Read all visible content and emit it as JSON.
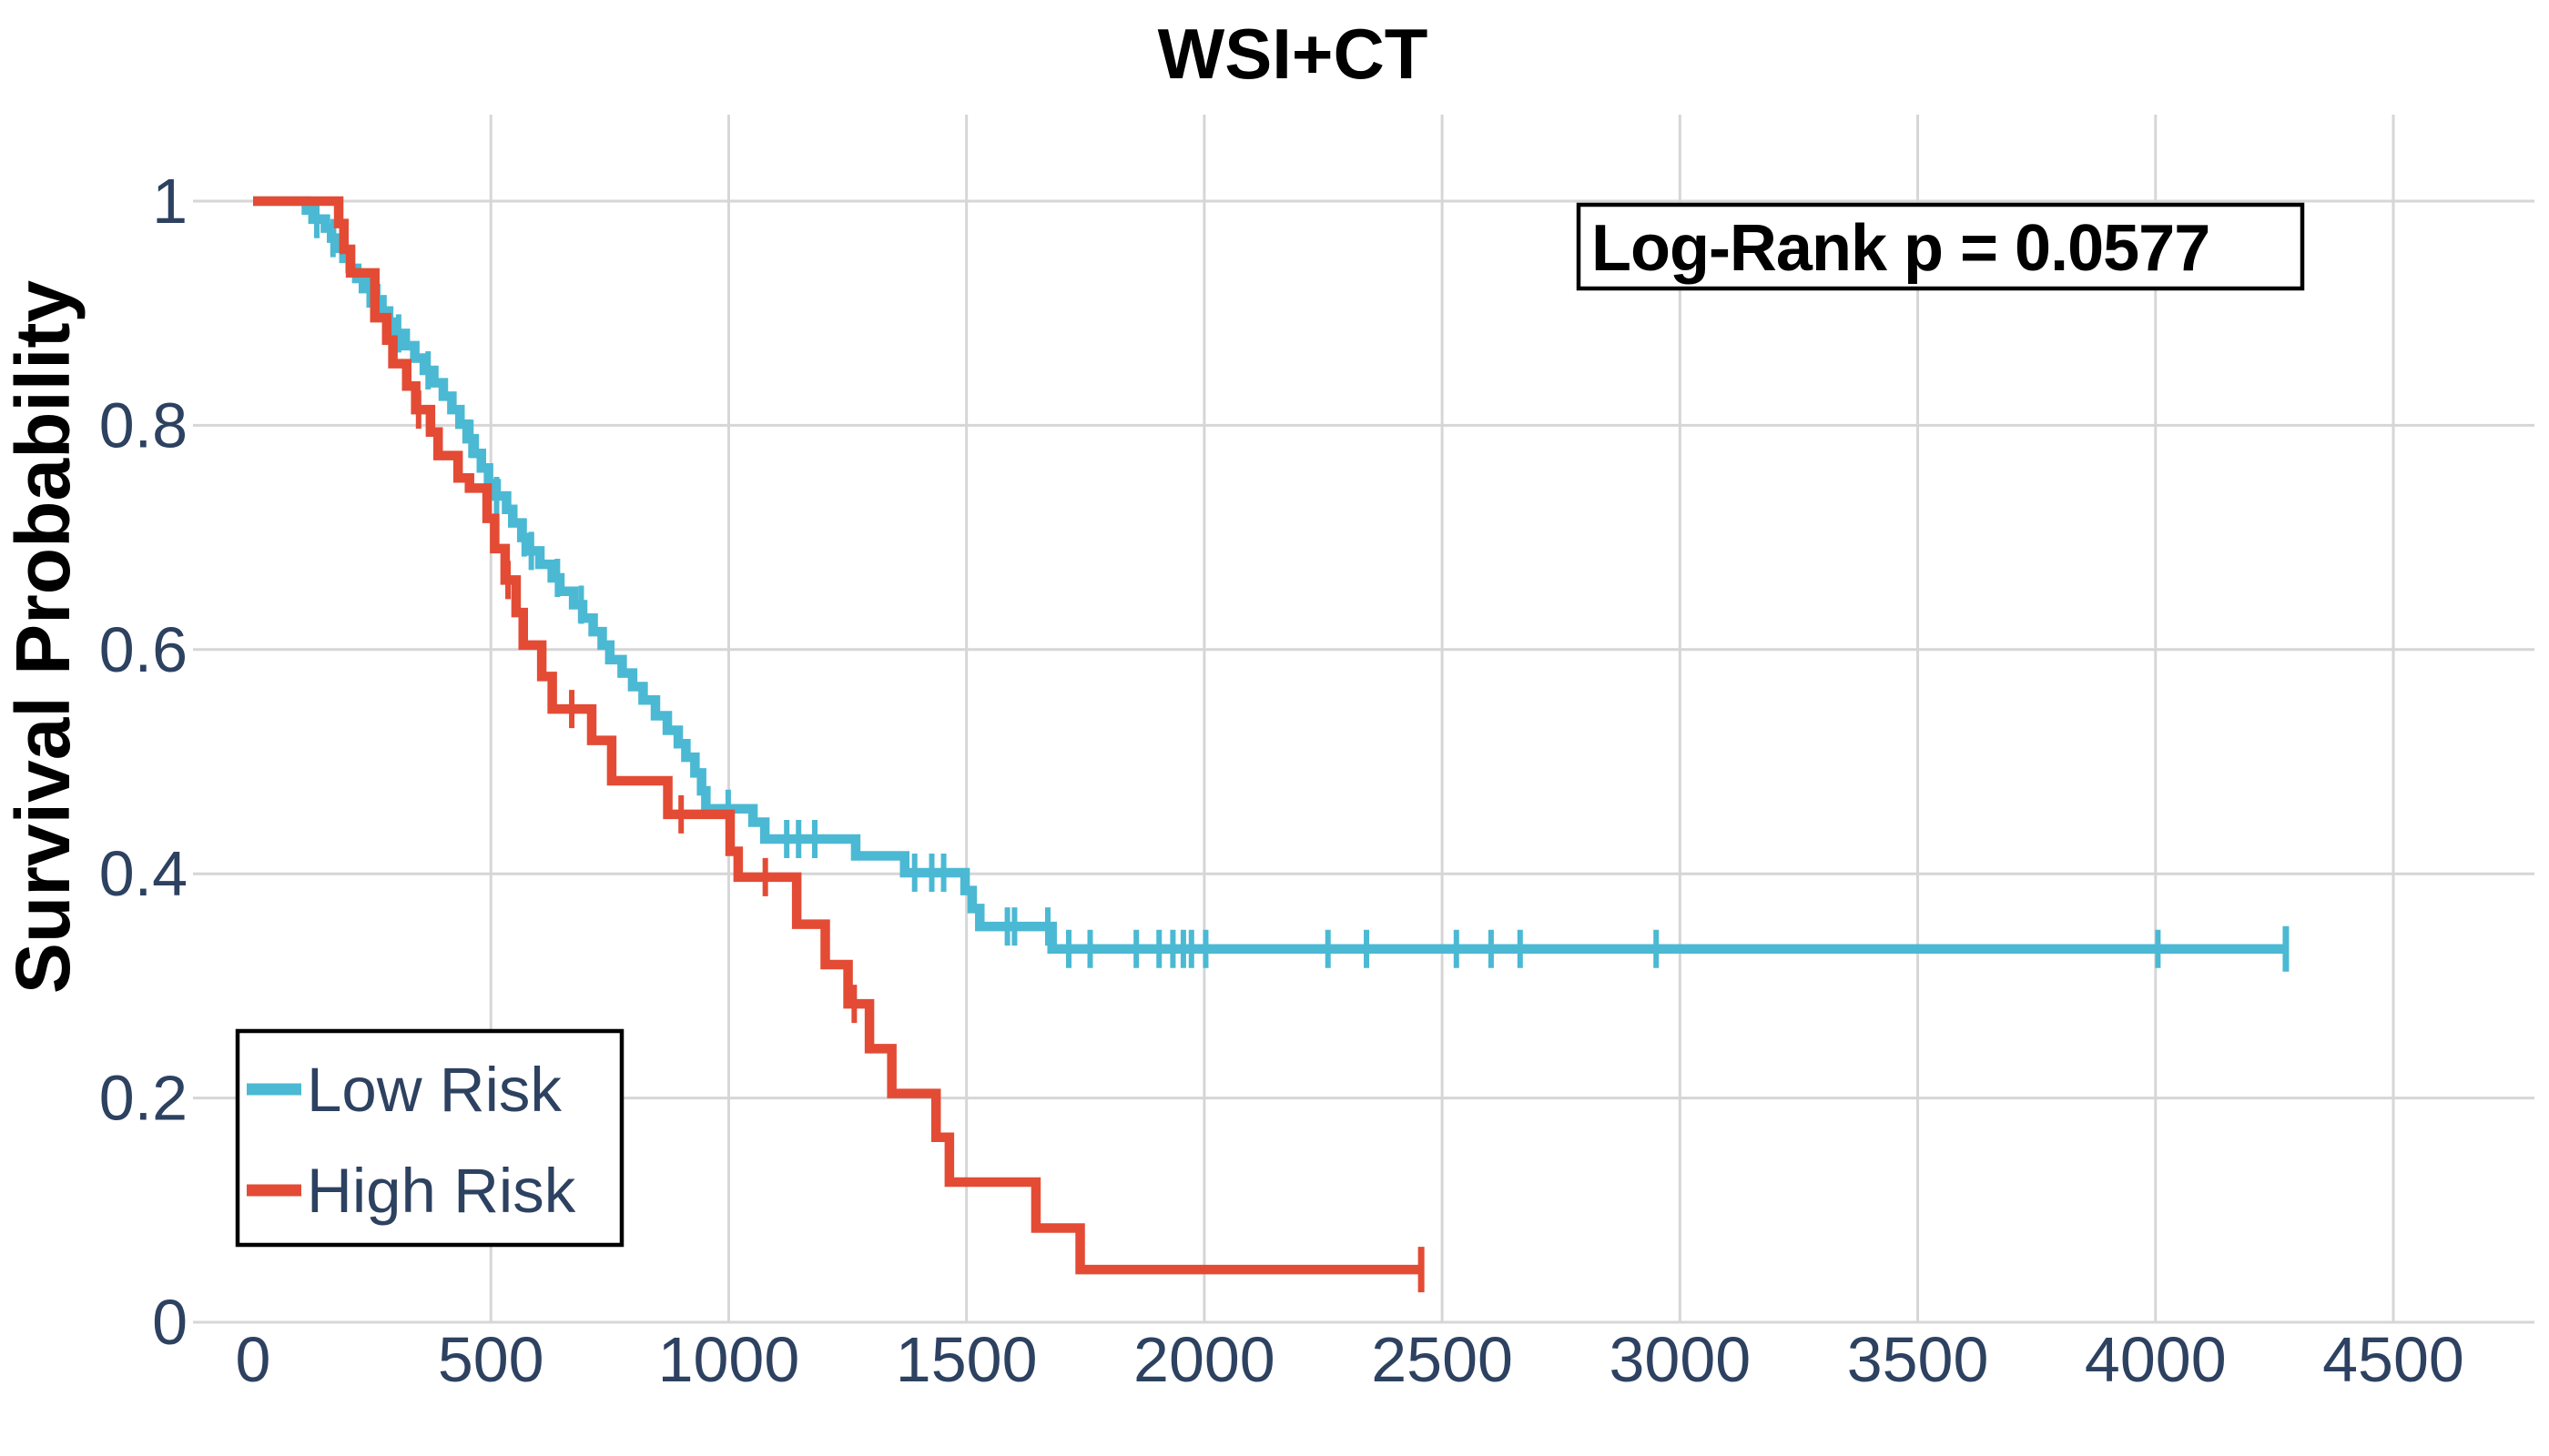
{
  "title": "WSI+CT",
  "y_axis": {
    "label": "Survival Probability",
    "tick_labels": [
      "1",
      "0.8",
      "0.6",
      "0.4",
      "0.2",
      "0"
    ],
    "tick_values": [
      1,
      0.8,
      0.6,
      0.4,
      0.2,
      0
    ]
  },
  "x_axis": {
    "tick_labels": [
      "0",
      "500",
      "1000",
      "1500",
      "2000",
      "2500",
      "3000",
      "3500",
      "4000",
      "4500"
    ],
    "tick_values": [
      0,
      500,
      1000,
      1500,
      2000,
      2500,
      3000,
      3500,
      4000,
      4500
    ]
  },
  "annotation": {
    "text": "Log-Rank p = 0.0577"
  },
  "legend": {
    "items": [
      {
        "label": "Low Risk",
        "color": "#4BB9D3"
      },
      {
        "label": "High Risk",
        "color": "#E34B35"
      }
    ]
  },
  "colors": {
    "low_risk": "#4BB9D3",
    "high_risk": "#E34B35",
    "tick_text": "#2D4160",
    "gridline": "#D6D6D6",
    "background": "#FFFFFF",
    "title_text": "#000000"
  },
  "chart_data": {
    "type": "line",
    "subtype": "kaplan-meier-step",
    "title": "WSI+CT",
    "xlabel": "",
    "ylabel": "Survival Probability",
    "xlim": [
      0,
      4500
    ],
    "ylim": [
      0,
      1
    ],
    "grid": true,
    "legend_position": "lower-left",
    "annotation": "Log-Rank p = 0.0577",
    "series": [
      {
        "name": "Low Risk",
        "color": "#4BB9D3",
        "start": [
          0,
          1.0
        ],
        "steps": [
          [
            112,
            0.992
          ],
          [
            126,
            0.984
          ],
          [
            152,
            0.976
          ],
          [
            165,
            0.967
          ],
          [
            178,
            0.958
          ],
          [
            191,
            0.949
          ],
          [
            204,
            0.94
          ],
          [
            218,
            0.931
          ],
          [
            232,
            0.922
          ],
          [
            258,
            0.912
          ],
          [
            271,
            0.902
          ],
          [
            285,
            0.892
          ],
          [
            300,
            0.882
          ],
          [
            320,
            0.871
          ],
          [
            340,
            0.86
          ],
          [
            360,
            0.849
          ],
          [
            380,
            0.838
          ],
          [
            400,
            0.826
          ],
          [
            418,
            0.814
          ],
          [
            435,
            0.801
          ],
          [
            450,
            0.788
          ],
          [
            465,
            0.775
          ],
          [
            480,
            0.762
          ],
          [
            495,
            0.748
          ],
          [
            511,
            0.737
          ],
          [
            533,
            0.725
          ],
          [
            546,
            0.713
          ],
          [
            565,
            0.7
          ],
          [
            581,
            0.688
          ],
          [
            603,
            0.676
          ],
          [
            629,
            0.664
          ],
          [
            645,
            0.652
          ],
          [
            674,
            0.64
          ],
          [
            693,
            0.628
          ],
          [
            715,
            0.616
          ],
          [
            734,
            0.604
          ],
          [
            750,
            0.591
          ],
          [
            776,
            0.579
          ],
          [
            798,
            0.567
          ],
          [
            820,
            0.555
          ],
          [
            846,
            0.541
          ],
          [
            871,
            0.528
          ],
          [
            894,
            0.516
          ],
          [
            910,
            0.504
          ],
          [
            929,
            0.49
          ],
          [
            943,
            0.474
          ],
          [
            952,
            0.458
          ],
          [
            1051,
            0.446
          ],
          [
            1076,
            0.431
          ],
          [
            1267,
            0.416
          ],
          [
            1370,
            0.401
          ],
          [
            1497,
            0.385
          ],
          [
            1512,
            0.369
          ],
          [
            1528,
            0.353
          ],
          [
            1680,
            0.333
          ]
        ],
        "censors": [
          134,
          168,
          244,
          306,
          368,
          458,
          512,
          570,
          585,
          640,
          690,
          999,
          1122,
          1147,
          1181,
          1391,
          1427,
          1452,
          1586,
          1601,
          1671,
          1715,
          1760,
          1857,
          1905,
          1934,
          1956,
          1973,
          2003,
          2260,
          2341,
          2530,
          2603,
          2664,
          2950,
          4005
        ],
        "end_time": 4274,
        "end_probability": 0.333
      },
      {
        "name": "High Risk",
        "color": "#E34B35",
        "start": [
          0,
          1.0
        ],
        "steps": [
          [
            180,
            0.98
          ],
          [
            191,
            0.957
          ],
          [
            205,
            0.936
          ],
          [
            256,
            0.896
          ],
          [
            281,
            0.876
          ],
          [
            294,
            0.855
          ],
          [
            323,
            0.835
          ],
          [
            342,
            0.814
          ],
          [
            373,
            0.794
          ],
          [
            389,
            0.773
          ],
          [
            431,
            0.753
          ],
          [
            455,
            0.744
          ],
          [
            492,
            0.717
          ],
          [
            508,
            0.69
          ],
          [
            530,
            0.662
          ],
          [
            553,
            0.633
          ],
          [
            568,
            0.604
          ],
          [
            607,
            0.576
          ],
          [
            629,
            0.547
          ],
          [
            712,
            0.519
          ],
          [
            754,
            0.483
          ],
          [
            872,
            0.453
          ],
          [
            1003,
            0.42
          ],
          [
            1020,
            0.397
          ],
          [
            1143,
            0.355
          ],
          [
            1203,
            0.319
          ],
          [
            1251,
            0.284
          ],
          [
            1296,
            0.244
          ],
          [
            1343,
            0.204
          ],
          [
            1436,
            0.165
          ],
          [
            1464,
            0.125
          ],
          [
            1646,
            0.084
          ],
          [
            1739,
            0.047
          ]
        ],
        "censors": [
          348,
          536,
          670,
          900,
          1077,
          1264
        ],
        "end_time": 2456,
        "end_probability": 0.047
      }
    ]
  }
}
